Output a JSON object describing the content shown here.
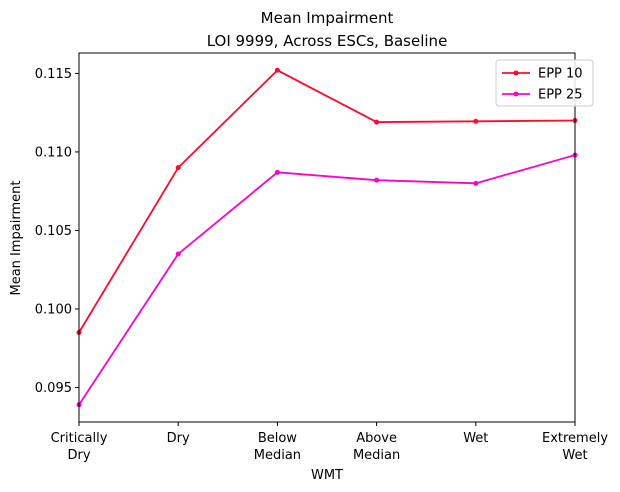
{
  "chart_data": {
    "type": "line",
    "title": "Mean Impairment",
    "subtitle": "LOI 9999, Across ESCs, Baseline",
    "xlabel": "WMT",
    "ylabel": "Mean Impairment",
    "categories": [
      [
        "Critically",
        "Dry"
      ],
      [
        "Dry"
      ],
      [
        "Below",
        "Median"
      ],
      [
        "Above",
        "Median"
      ],
      [
        "Wet"
      ],
      [
        "Extremely",
        "Wet"
      ]
    ],
    "ylim": [
      0.0928,
      0.1163
    ],
    "yticks": [
      "0.095",
      "0.100",
      "0.105",
      "0.110",
      "0.115"
    ],
    "yticks_values": [
      0.095,
      0.1,
      0.105,
      0.11,
      0.115
    ],
    "grid": false,
    "legend_position": "top-right",
    "series": [
      {
        "name": "EPP 10",
        "color": "#ff0a2a",
        "values": [
          0.0985,
          0.109,
          0.1152,
          0.1119,
          0.11195,
          0.112
        ]
      },
      {
        "name": "EPP 25",
        "color": "#ff00cc",
        "values": [
          0.0939,
          0.1035,
          0.1087,
          0.1082,
          0.108,
          0.1098
        ]
      }
    ]
  }
}
